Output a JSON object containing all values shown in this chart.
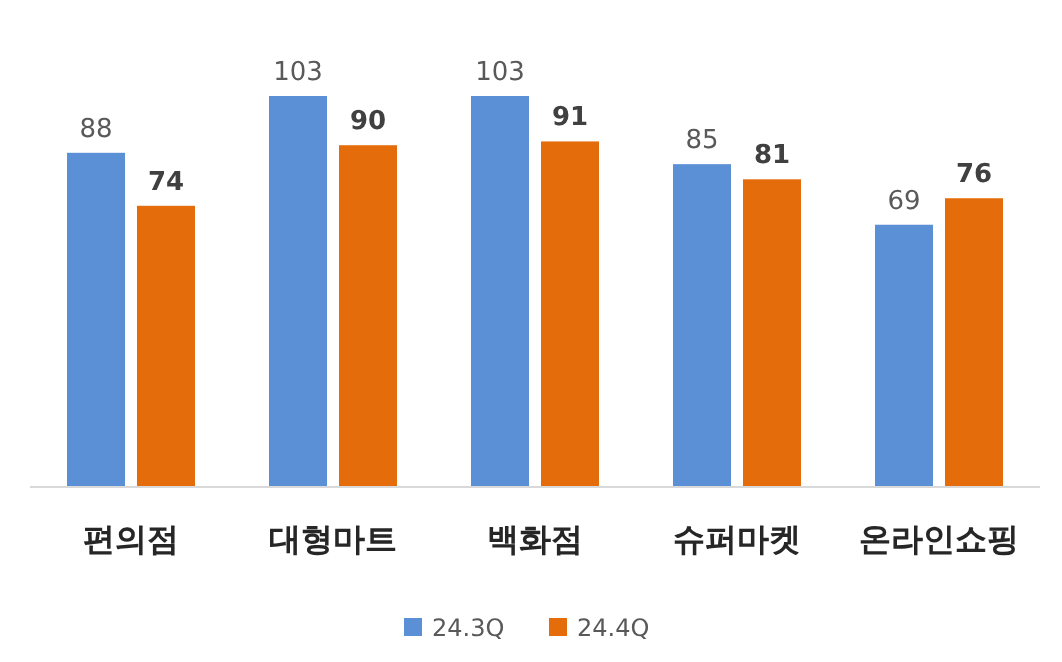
{
  "chart_data": {
    "type": "bar",
    "categories": [
      "편의점",
      "대형마트",
      "백화점",
      "슈퍼마켓",
      "온라인쇼핑"
    ],
    "series": [
      {
        "name": "24.3Q",
        "color": "#5b8fd6",
        "values": [
          88,
          103,
          103,
          85,
          69
        ]
      },
      {
        "name": "24.4Q",
        "color": "#e46c0a",
        "values": [
          74,
          90,
          91,
          81,
          76
        ]
      }
    ],
    "data_labels": true,
    "legend": "bottom",
    "grid": false
  }
}
